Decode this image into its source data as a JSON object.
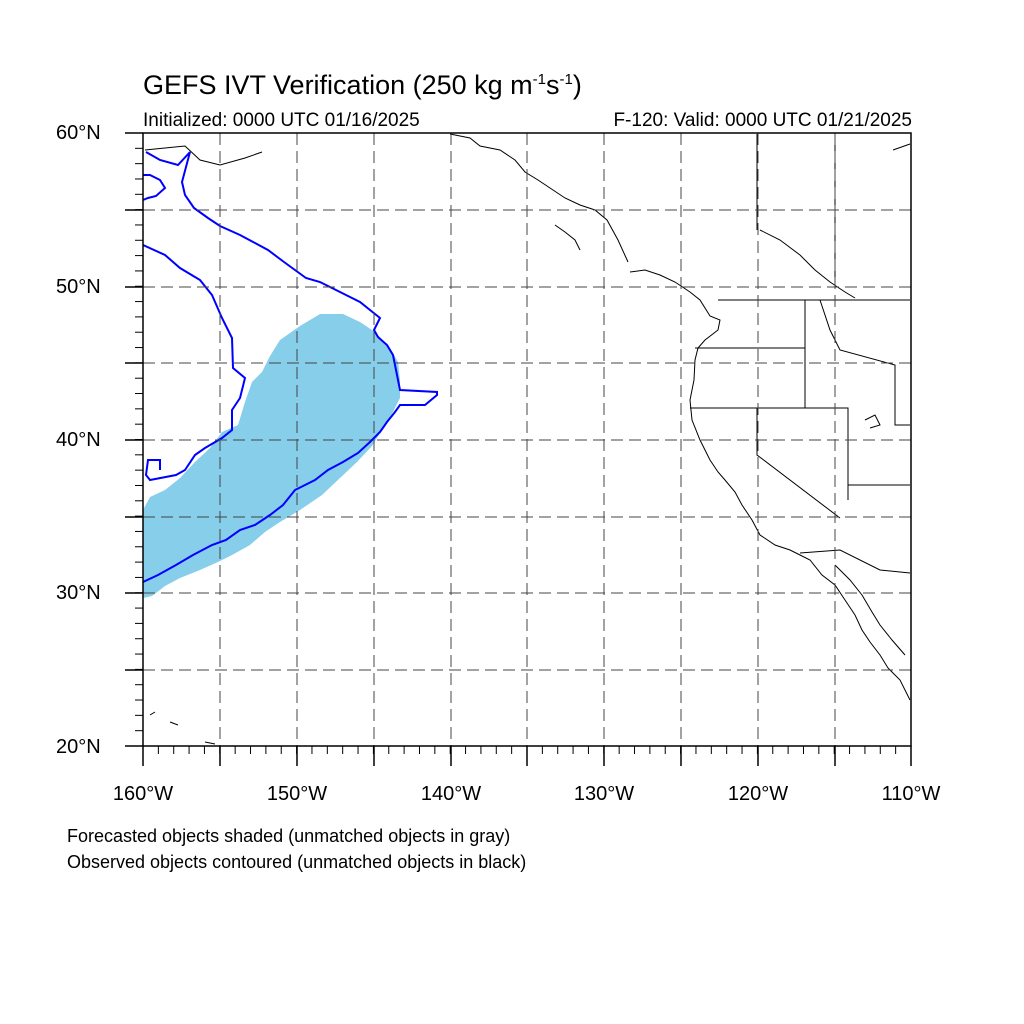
{
  "title": {
    "main": "GEFS IVT Verification (250 kg m",
    "exp1": "-1",
    "mid": "s",
    "exp2": "-1",
    "end": ")"
  },
  "subtitle": {
    "initialized": "Initialized: 0000 UTC 01/16/2025",
    "valid": "F-120: Valid: 0000 UTC 01/21/2025"
  },
  "axes": {
    "lat_labels": [
      "60°N",
      "50°N",
      "40°N",
      "30°N",
      "20°N"
    ],
    "lon_labels": [
      "160°W",
      "150°W",
      "140°W",
      "130°W",
      "120°W",
      "110°W"
    ],
    "lat_range": [
      20,
      60
    ],
    "lon_range": [
      -160,
      -110
    ],
    "grid": true
  },
  "legend": {
    "forecast_note": "Forecasted objects shaded (unmatched objects in gray)",
    "observed_note": "Observed objects contoured (unmatched objects in black)"
  },
  "colors": {
    "forecast_fill": "#87ceeb",
    "observed_contour": "#0000ff",
    "coastline": "#000000",
    "grid": "#555555"
  }
}
